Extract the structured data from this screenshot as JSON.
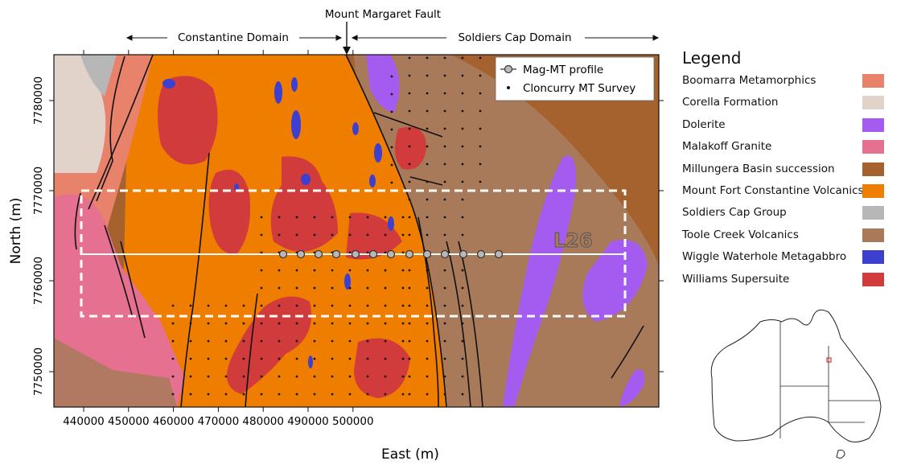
{
  "domains": {
    "fault_label": "Mount Margaret Fault",
    "left_domain": "Constantine Domain",
    "right_domain": "Soldiers Cap Domain"
  },
  "axes": {
    "xlabel": "East (m)",
    "ylabel": "North (m)",
    "x_ticks": [
      "440000",
      "450000",
      "460000",
      "470000",
      "480000",
      "490000",
      "500000"
    ],
    "y_ticks": [
      "7750000",
      "7760000",
      "7770000",
      "7780000"
    ]
  },
  "map_legend": {
    "profile": "Mag-MT profile",
    "survey": "Cloncurry MT Survey"
  },
  "profile_label": "L26",
  "legend": {
    "title": "Legend",
    "items": [
      {
        "label": "Boomarra Metamorphics",
        "color": "#e8826a"
      },
      {
        "label": "Corella Formation",
        "color": "#e2d3ca"
      },
      {
        "label": "Dolerite",
        "color": "#a45cf0"
      },
      {
        "label": "Malakoff Granite",
        "color": "#e57090"
      },
      {
        "label": "Millungera Basin succession",
        "color": "#a6622e"
      },
      {
        "label": "Mount Fort Constantine Volcanics",
        "color": "#ef7d00"
      },
      {
        "label": "Soldiers Cap Group",
        "color": "#b7b7b7"
      },
      {
        "label": "Toole Creek Volcanics",
        "color": "#a87a5a"
      },
      {
        "label": "Wiggle Waterhole Metagabbro",
        "color": "#3d3fd0"
      },
      {
        "label": "Williams Supersuite",
        "color": "#d13b3b"
      }
    ]
  }
}
